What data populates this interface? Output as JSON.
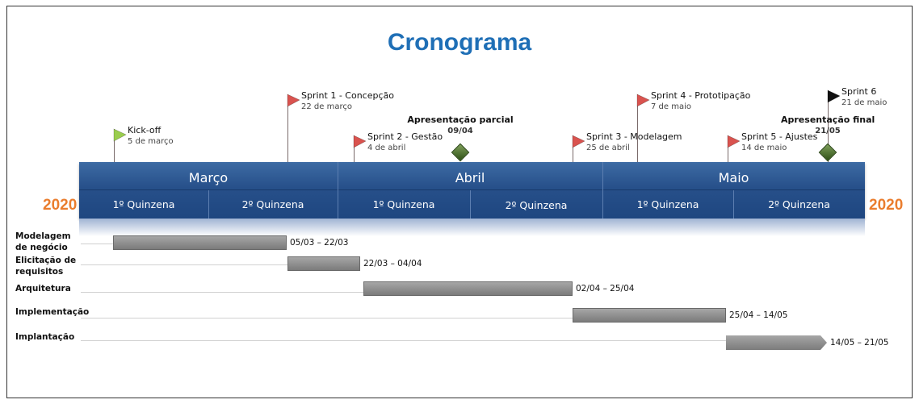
{
  "title": "Cronograma",
  "year_left": "2020",
  "year_right": "2020",
  "months": [
    {
      "label": "Março",
      "quinzenas": [
        "1º Quinzena",
        "2º Quinzena"
      ]
    },
    {
      "label": "Abril",
      "quinzenas": [
        "1º Quinzena",
        "2º Quinzena"
      ]
    },
    {
      "label": "Maio",
      "quinzenas": [
        "1º Quinzena",
        "2º Quinzena"
      ]
    }
  ],
  "milestones": [
    {
      "label": "Kick-off",
      "date": "5 de março",
      "color": "#9acd4e"
    },
    {
      "label": "Sprint 1 - Concepção",
      "date": "22 de março",
      "color": "#d9534f"
    },
    {
      "label": "Sprint 2 - Gestão",
      "date": "4 de abril",
      "color": "#d9534f"
    },
    {
      "label": "Sprint 3 - Modelagem",
      "date": "25 de abril",
      "color": "#d9534f"
    },
    {
      "label": "Sprint 4 - Prototipação",
      "date": "7 de maio",
      "color": "#d9534f"
    },
    {
      "label": "Sprint 5 - Ajustes",
      "date": "14 de maio",
      "color": "#d9534f"
    },
    {
      "label": "Sprint 6",
      "date": "21 de maio",
      "color": "#111111"
    }
  ],
  "key_events": [
    {
      "label": "Apresentação parcial",
      "date": "09/04"
    },
    {
      "label": "Apresentação final",
      "date": "21/05"
    }
  ],
  "tasks": [
    {
      "label": "Modelagem de negócio",
      "range": "05/03 – 22/03"
    },
    {
      "label": "Elicitação de requisitos",
      "range": "22/03 – 04/04"
    },
    {
      "label": "Arquitetura",
      "range": "02/04 – 25/04"
    },
    {
      "label": "Implementação",
      "range": "25/04 – 14/05"
    },
    {
      "label": "Implantação",
      "range": "14/05 – 21/05"
    }
  ]
}
